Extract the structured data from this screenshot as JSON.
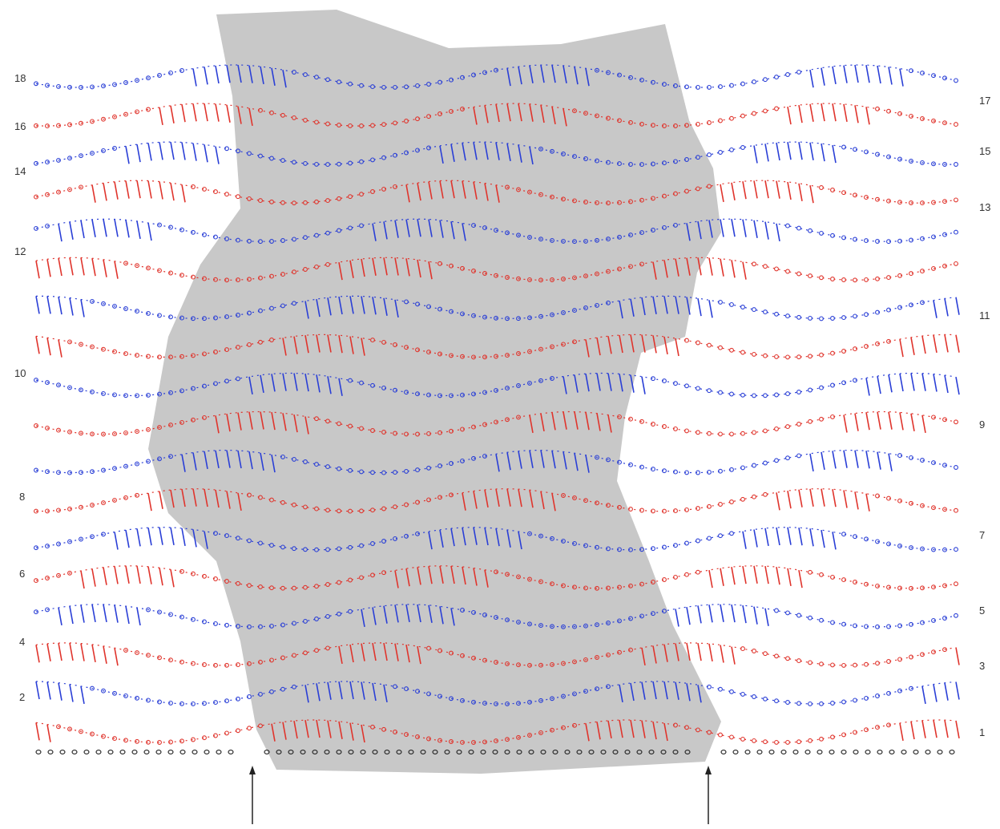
{
  "diagram": {
    "colors": {
      "blue": "#2a3fd6",
      "red": "#e0342c",
      "shade": "#c8c8c8",
      "foundation": "#222222",
      "label": "#333333"
    },
    "row_labels_left": [
      "18",
      "16",
      "14",
      "12",
      "10",
      "8",
      "6",
      "4",
      "2"
    ],
    "row_labels_right": [
      "17",
      "15",
      "13",
      "11",
      "9",
      "7",
      "5",
      "3",
      "1"
    ],
    "rows": [
      {
        "number": 18,
        "color": "blue"
      },
      {
        "number": 17,
        "color": "red"
      },
      {
        "number": 16,
        "color": "blue"
      },
      {
        "number": 15,
        "color": "red"
      },
      {
        "number": 14,
        "color": "blue"
      },
      {
        "number": 13,
        "color": "red"
      },
      {
        "number": 12,
        "color": "blue"
      },
      {
        "number": 11,
        "color": "red"
      },
      {
        "number": 10,
        "color": "blue"
      },
      {
        "number": 9,
        "color": "red"
      },
      {
        "number": 8,
        "color": "blue"
      },
      {
        "number": 7,
        "color": "red"
      },
      {
        "number": 6,
        "color": "blue"
      },
      {
        "number": 5,
        "color": "red"
      },
      {
        "number": 4,
        "color": "blue"
      },
      {
        "number": 3,
        "color": "red"
      },
      {
        "number": 2,
        "color": "blue"
      },
      {
        "number": 1,
        "color": "red"
      }
    ],
    "arrows": [
      "up-arrow",
      "up-arrow"
    ]
  }
}
